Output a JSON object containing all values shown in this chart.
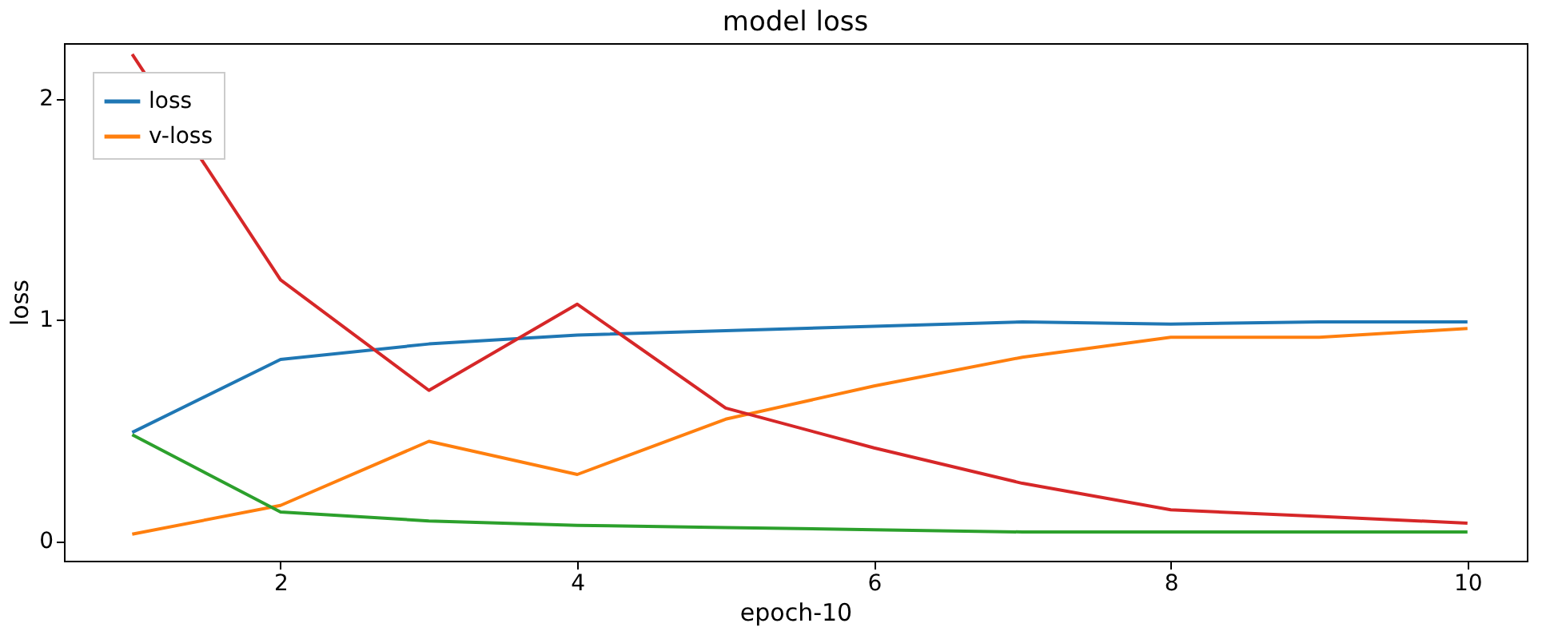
{
  "chart_data": {
    "type": "line",
    "title": "model loss",
    "xlabel": "epoch-10",
    "ylabel": "loss",
    "x": [
      1,
      2,
      3,
      4,
      5,
      6,
      7,
      8,
      9,
      10
    ],
    "xlim": [
      0.54,
      10.4
    ],
    "xticks": [
      2,
      4,
      6,
      8,
      10
    ],
    "ylim": [
      -0.09,
      2.25
    ],
    "yticks": [
      0,
      1,
      2
    ],
    "grid": false,
    "legend": "top left",
    "marker": "none",
    "line_style": "solid",
    "series": [
      {
        "name": "loss",
        "color": "#1f77b4",
        "values": [
          0.49,
          0.82,
          0.89,
          0.93,
          0.95,
          0.97,
          0.99,
          0.98,
          0.99,
          0.99
        ]
      },
      {
        "name": "v-loss",
        "color": "#ff7f0e",
        "values": [
          0.03,
          0.16,
          0.45,
          0.3,
          0.55,
          0.7,
          0.83,
          0.92,
          0.92,
          0.96
        ]
      },
      {
        "color": "#d62728",
        "values": [
          2.2,
          1.18,
          0.68,
          1.07,
          0.6,
          0.42,
          0.26,
          0.14,
          0.11,
          0.08
        ]
      },
      {
        "color": "#2ca02c",
        "values": [
          0.48,
          0.13,
          0.09,
          0.07,
          0.06,
          0.05,
          0.04,
          0.04,
          0.04,
          0.04
        ]
      }
    ]
  }
}
